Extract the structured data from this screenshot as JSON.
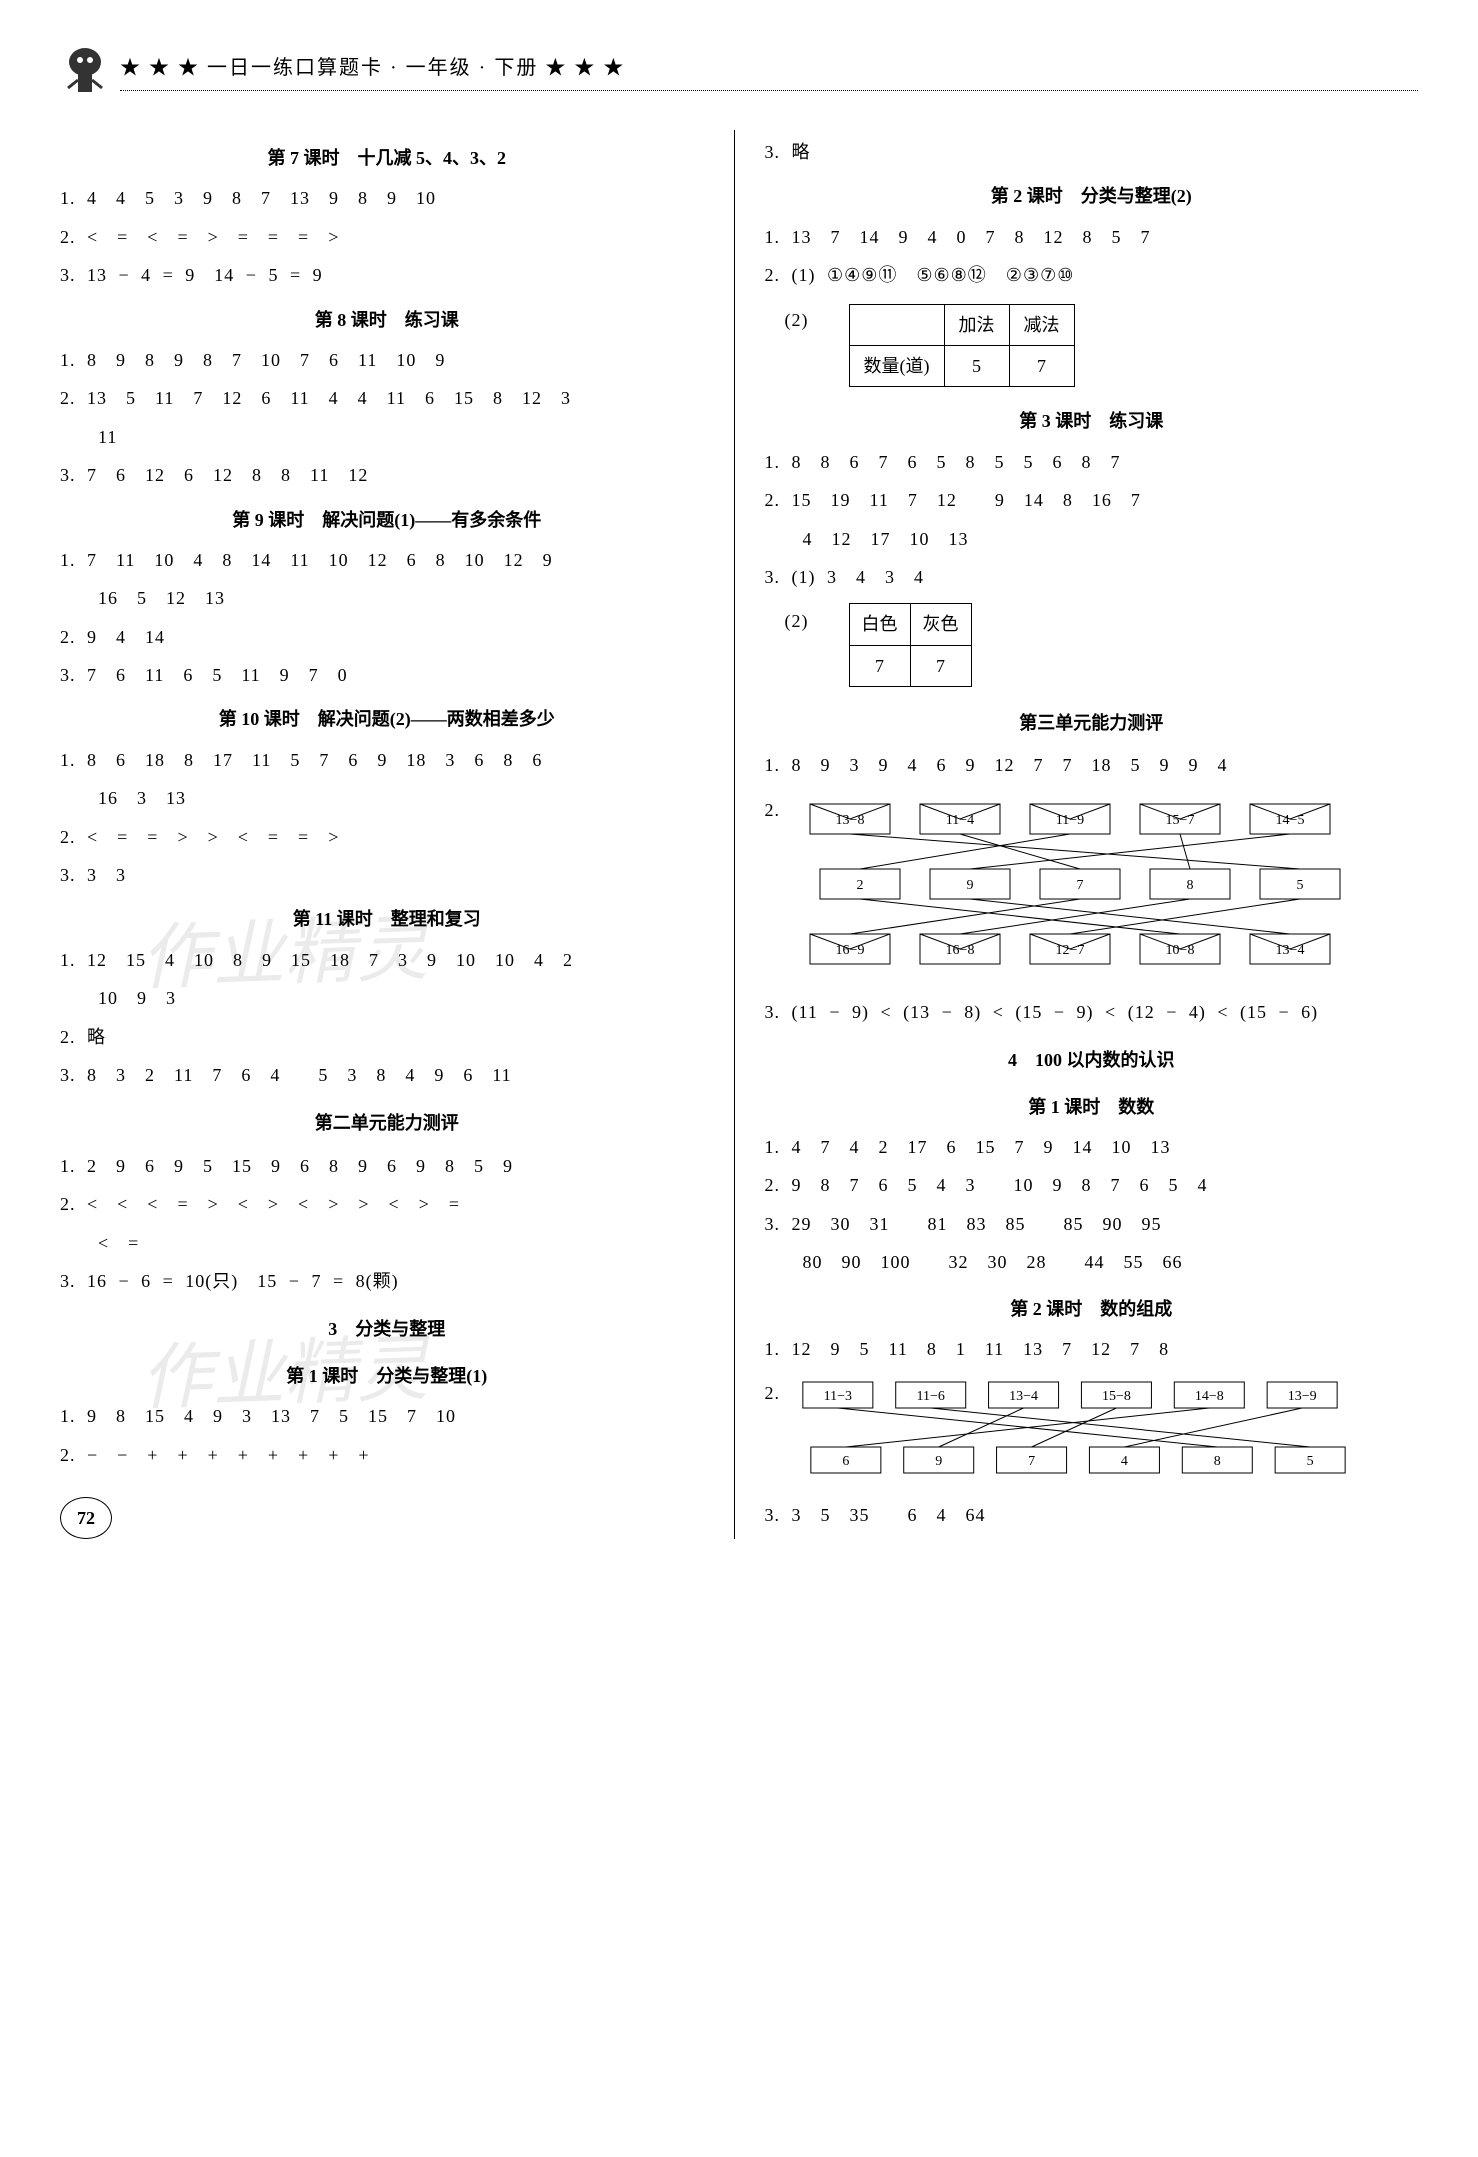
{
  "header": {
    "title": "★ ★ ★ 一日一练口算题卡 · 一年级 · 下册 ★ ★ ★"
  },
  "page_number": "72",
  "watermark_text": "作业精灵",
  "left": {
    "s7": {
      "title": "第 7 课时　十几减 5、4、3、2",
      "l1": "1. 4　4　5　3　9　8　7　13　9　8　9　10",
      "l2": "2. <　=　<　=　>　=　=　=　>",
      "l3": "3. 13 − 4 = 9　14 − 5 = 9"
    },
    "s8": {
      "title": "第 8 课时　练习课",
      "l1": "1. 8　9　8　9　8　7　10　7　6　11　10　9",
      "l2": "2. 13　5　11　7　12　6　11　4　4　11　6　15　8　12　3",
      "l2b": "　　11",
      "l3": "3. 7　6　12　6　12　8　8　11　12"
    },
    "s9": {
      "title": "第 9 课时　解决问题(1)——有多余条件",
      "l1": "1. 7　11　10　4　8　14　11　10　12　6　8　10　12　9",
      "l1b": "　　16　5　12　13",
      "l2": "2. 9　4　14",
      "l3": "3. 7　6　11　6　5　11　9　7　0"
    },
    "s10": {
      "title": "第 10 课时　解决问题(2)——两数相差多少",
      "l1": "1. 8　6　18　8　17　11　5　7　6　9　18　3　6　8　6",
      "l1b": "　　16　3　13",
      "l2": "2. <　=　=　>　>　<　=　=　>",
      "l3": "3. 3　3"
    },
    "s11": {
      "title": "第 11 课时　整理和复习",
      "l1": "1. 12　15　4　10　8　9　15　18　7　3　9　10　10　4　2",
      "l1b": "　　10　9　3",
      "l2": "2. 略",
      "l3": "3. 8　3　2　11　7　6　4　　5　3　8　4　9　6　11"
    },
    "unit2": {
      "title": "第二单元能力测评",
      "l1": "1. 2　9　6　9　5　15　9　6　8　9　6　9　8　5　9",
      "l2": "2. <　<　<　=　>　<　>　<　>　>　<　>　=",
      "l2b": "　　<　=",
      "l3": "3. 16 − 6 = 10(只)　15 − 7 = 8(颗)"
    },
    "cat3": {
      "title": "3　分类与整理",
      "sub1_title": "第 1 课时　分类与整理(1)",
      "l1": "1. 9　8　15　4　9　3　13　7　5　15　7　10",
      "l2": "2. −　−　+　+　+　+　+　+　+　+"
    }
  },
  "right": {
    "cat1_l3": "3. 略",
    "cat_s2": {
      "title": "第 2 课时　分类与整理(2)",
      "l1": "1. 13　7　14　9　4　0　7　8　12　8　5　7",
      "l2": "2. (1) ①④⑨⑪　⑤⑥⑧⑫　②③⑦⑩",
      "l2_2_label": "(2)",
      "table": {
        "h1": "",
        "h2": "加法",
        "h3": "减法",
        "r1": "数量(道)",
        "r2": "5",
        "r3": "7"
      }
    },
    "cat_s3": {
      "title": "第 3 课时　练习课",
      "l1": "1. 8　8　6　7　6　5　8　5　5　6　8　7",
      "l2": "2. 15　19　11　7　12　　9　14　8　16　7",
      "l2b": "　　4　12　17　10　13",
      "l3": "3. (1) 3　4　3　4",
      "l3_2_label": "(2)",
      "table": {
        "h1": "白色",
        "h2": "灰色",
        "r1": "7",
        "r2": "7"
      }
    },
    "unit3": {
      "title": "第三单元能力测评",
      "l1": "1. 8　9　3　9　4　6　9　12　7　7　18　5　9　9　4",
      "l2_label": "2.",
      "diagram": {
        "top": [
          "13−8",
          "11−4",
          "11−9",
          "15−7",
          "14−5"
        ],
        "mid": [
          "2",
          "9",
          "7",
          "8",
          "5"
        ],
        "bot": [
          "16−9",
          "16−8",
          "12−7",
          "10−8",
          "13−4"
        ],
        "colors": {
          "box_border": "#000000",
          "line": "#000000"
        }
      },
      "l3": "3. (11 − 9) < (13 − 8) < (15 − 9) < (12 − 4) < (15 − 6)"
    },
    "chap4": {
      "title": "4　100 以内数的认识",
      "s1_title": "第 1 课时　数数",
      "s1_l1": "1. 4　7　4　2　17　6　15　7　9　14　10　13",
      "s1_l2": "2. 9　8　7　6　5　4　3　　10　9　8　7　6　5　4",
      "s1_l3": "3. 29　30　31　　81　83　85　　85　90　95",
      "s1_l3b": "　　80　90　100　　32　30　28　　44　55　66",
      "s2_title": "第 2 课时　数的组成",
      "s2_l1": "1. 12　9　5　11　8　1　11　13　7　12　7　8",
      "s2_l2_label": "2.",
      "s2_diagram": {
        "top": [
          "11−3",
          "11−6",
          "13−4",
          "15−8",
          "14−8",
          "13−9"
        ],
        "bot": [
          "6",
          "9",
          "7",
          "4",
          "8",
          "5"
        ],
        "colors": {
          "box_border": "#000000",
          "line": "#000000"
        }
      },
      "s2_l3": "3. 3　5　35　　6　4　64"
    }
  }
}
